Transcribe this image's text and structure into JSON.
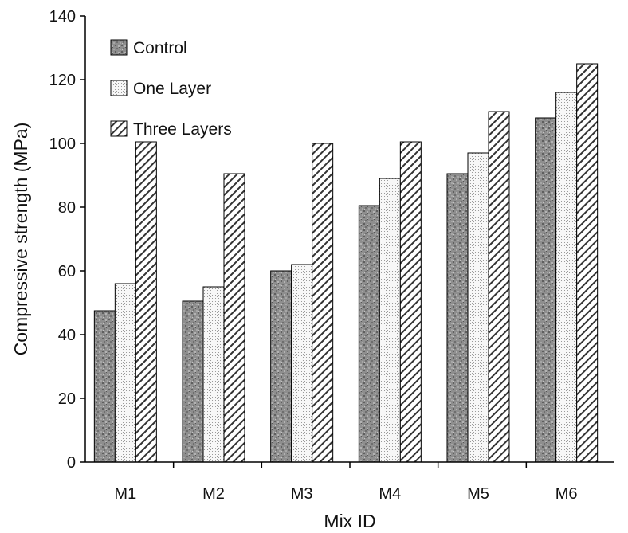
{
  "chart_data": {
    "type": "bar",
    "title": "",
    "xlabel": "Mix ID",
    "ylabel": "Compressive strength (MPa)",
    "categories": [
      "M1",
      "M2",
      "M3",
      "M4",
      "M5",
      "M6"
    ],
    "ylim": [
      0,
      140
    ],
    "yticks": [
      0,
      20,
      40,
      60,
      80,
      100,
      120,
      140
    ],
    "grid": false,
    "legend_position": "top-left",
    "series": [
      {
        "name": "Control",
        "pattern": "speckled-gray",
        "color": "#8c8c8c",
        "values": [
          47.5,
          50.5,
          60,
          80.5,
          90.5,
          108
        ]
      },
      {
        "name": "One Layer",
        "pattern": "dotted-light",
        "color": "#e8e8e8",
        "values": [
          56,
          55,
          62,
          89,
          97,
          116
        ]
      },
      {
        "name": "Three Layers",
        "pattern": "diagonal-hatch",
        "color": "#ffffff",
        "values": [
          100.5,
          90.5,
          100,
          100.5,
          110,
          125
        ]
      }
    ]
  }
}
